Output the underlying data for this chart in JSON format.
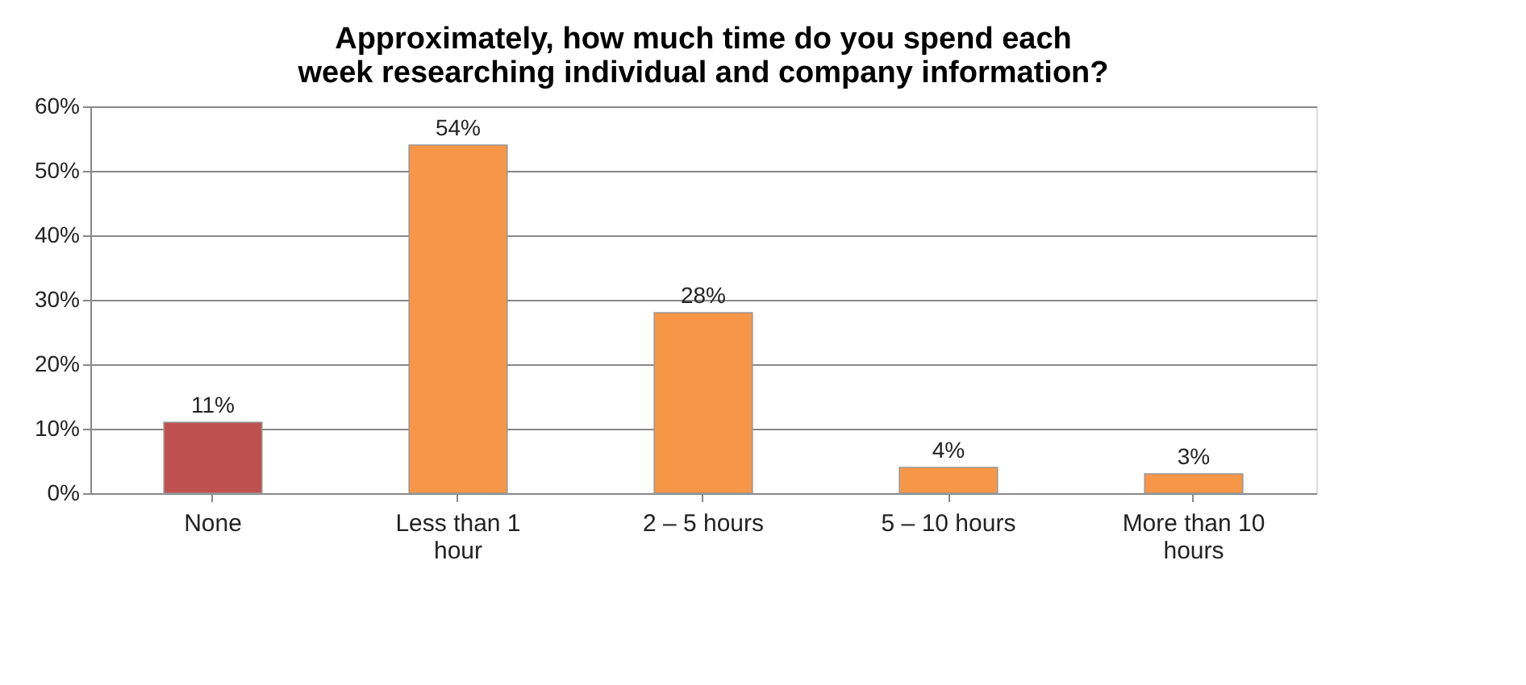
{
  "chart_data": {
    "type": "bar",
    "title": "Approximately, how much time do you spend each\nweek researching individual and company information?",
    "categories": [
      "None",
      "Less than 1 hour",
      "2 – 5 hours",
      "5 – 10 hours",
      "More than 10 hours"
    ],
    "values": [
      11,
      54,
      28,
      4,
      3
    ],
    "colors": [
      "#c0504d",
      "#f79646",
      "#f79646",
      "#f79646",
      "#f79646"
    ],
    "value_labels": [
      "11%",
      "54%",
      "28%",
      "4%",
      "3%"
    ],
    "ylim": [
      0,
      60
    ],
    "yticks": [
      {
        "value": 0,
        "label": "0%"
      },
      {
        "value": 10,
        "label": "10%"
      },
      {
        "value": 20,
        "label": "20%"
      },
      {
        "value": 30,
        "label": "30%"
      },
      {
        "value": 40,
        "label": "40%"
      },
      {
        "value": 50,
        "label": "50%"
      },
      {
        "value": 60,
        "label": "60%"
      }
    ],
    "grid": "y"
  }
}
